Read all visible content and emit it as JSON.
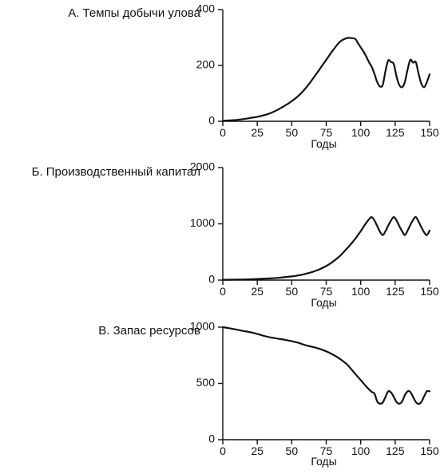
{
  "chart_data": [
    {
      "type": "line",
      "title": "А. Темпы добычи улова",
      "xlabel": "Годы",
      "ylabel": "",
      "xlim": [
        0,
        150
      ],
      "ylim": [
        0,
        400
      ],
      "x_ticks": [
        0,
        25,
        50,
        75,
        100,
        125,
        150
      ],
      "y_ticks": [
        0,
        200,
        400
      ],
      "x_tick_labels": [
        "0",
        "25",
        "50",
        "75",
        "100",
        "125",
        "150"
      ],
      "y_tick_labels": [
        "0",
        "200",
        "400"
      ],
      "grid": false,
      "series": [
        {
          "x": [
            0,
            5,
            10,
            15,
            20,
            25,
            30,
            35,
            40,
            45,
            50,
            55,
            60,
            65,
            70,
            75,
            80,
            85,
            90,
            93,
            96,
            98,
            100,
            102,
            104,
            106,
            108,
            110,
            112,
            114,
            116,
            118,
            120,
            122,
            124,
            126,
            128,
            130,
            132,
            134,
            136,
            138,
            140,
            142,
            144,
            146,
            148,
            150
          ],
          "y": [
            2,
            3,
            5,
            8,
            12,
            16,
            22,
            30,
            42,
            56,
            72,
            92,
            118,
            150,
            185,
            220,
            255,
            285,
            298,
            298,
            295,
            280,
            265,
            250,
            232,
            212,
            195,
            170,
            140,
            125,
            130,
            180,
            218,
            212,
            205,
            160,
            130,
            122,
            140,
            185,
            220,
            210,
            212,
            170,
            135,
            122,
            140,
            168
          ]
        }
      ]
    },
    {
      "type": "line",
      "title": "Б. Производственный капитал",
      "xlabel": "Годы",
      "ylabel": "",
      "xlim": [
        0,
        150
      ],
      "ylim": [
        0,
        2000
      ],
      "x_ticks": [
        0,
        25,
        50,
        75,
        100,
        125,
        150
      ],
      "y_ticks": [
        0,
        1000,
        2000
      ],
      "x_tick_labels": [
        "0",
        "25",
        "50",
        "75",
        "100",
        "125",
        "150"
      ],
      "y_tick_labels": [
        "0",
        "1000",
        "2000"
      ],
      "grid": false,
      "series": [
        {
          "x": [
            0,
            10,
            20,
            30,
            40,
            50,
            55,
            60,
            65,
            70,
            75,
            80,
            85,
            90,
            95,
            100,
            103,
            106,
            108,
            110,
            112,
            114,
            116,
            118,
            120,
            122,
            124,
            126,
            128,
            130,
            132,
            134,
            136,
            138,
            140,
            142,
            144,
            146,
            148,
            150
          ],
          "y": [
            5,
            8,
            14,
            25,
            40,
            65,
            85,
            110,
            145,
            190,
            250,
            330,
            430,
            560,
            700,
            870,
            980,
            1080,
            1120,
            1060,
            960,
            860,
            800,
            870,
            970,
            1060,
            1120,
            1060,
            960,
            870,
            800,
            880,
            980,
            1070,
            1120,
            1040,
            940,
            850,
            800,
            880
          ]
        }
      ]
    },
    {
      "type": "line",
      "title": "В. Запас ресурсов",
      "xlabel": "Годы",
      "ylabel": "",
      "xlim": [
        0,
        150
      ],
      "ylim": [
        0,
        1000
      ],
      "x_ticks": [
        0,
        25,
        50,
        75,
        100,
        125,
        150
      ],
      "y_ticks": [
        0,
        500,
        1000
      ],
      "x_tick_labels": [
        "0",
        "25",
        "50",
        "75",
        "100",
        "125",
        "150"
      ],
      "y_tick_labels": [
        "0",
        "500",
        "1000"
      ],
      "grid": false,
      "series": [
        {
          "x": [
            0,
            5,
            10,
            15,
            20,
            25,
            30,
            35,
            40,
            45,
            50,
            55,
            60,
            65,
            70,
            75,
            80,
            85,
            90,
            95,
            100,
            105,
            108,
            110,
            112,
            114,
            116,
            118,
            120,
            122,
            124,
            126,
            128,
            130,
            132,
            134,
            136,
            138,
            140,
            142,
            144,
            146,
            148,
            150
          ],
          "y": [
            1000,
            990,
            978,
            966,
            955,
            940,
            922,
            908,
            898,
            888,
            875,
            860,
            840,
            825,
            808,
            785,
            755,
            718,
            670,
            600,
            530,
            460,
            425,
            410,
            340,
            320,
            330,
            380,
            430,
            420,
            380,
            335,
            320,
            340,
            395,
            430,
            425,
            380,
            335,
            318,
            335,
            385,
            430,
            430
          ]
        }
      ]
    }
  ]
}
